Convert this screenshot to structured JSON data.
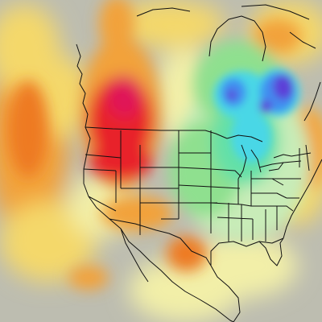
{
  "map": {
    "kind": "temperature-anomaly-heatmap",
    "region_shown": "North America",
    "colors": {
      "neutral": "#bdbdb0",
      "pale_yellow": "#f2efa8",
      "yellow": "#f4d86a",
      "orange": "#f2a23a",
      "dark_orange": "#ee7a22",
      "red": "#e8202a",
      "crimson": "#e01858",
      "light_green": "#c8ecb8",
      "green": "#8fe08f",
      "mint": "#63e0a8",
      "cyan": "#4ad7e6",
      "blue": "#3f8ff0",
      "violet": "#5b3fd8",
      "boundary_line": "#111111"
    },
    "boundaries": [
      "coastlines",
      "international-borders",
      "us-state-borders",
      "great-lakes"
    ]
  }
}
